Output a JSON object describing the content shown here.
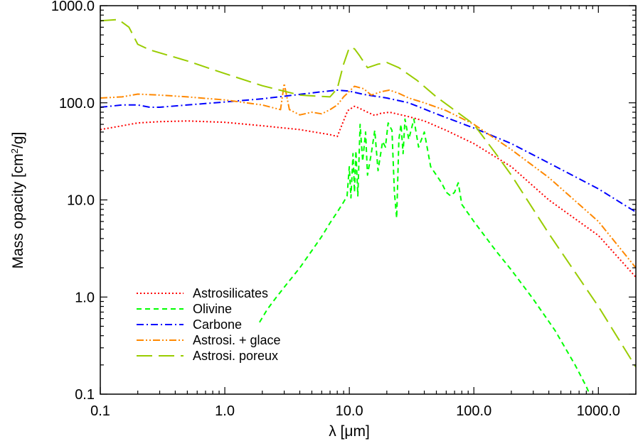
{
  "chart_data": {
    "type": "line",
    "xscale": "log",
    "yscale": "log",
    "xlim": [
      0.1,
      2000
    ],
    "ylim": [
      0.1,
      1000
    ],
    "xlabel": "λ [μm]",
    "ylabel_main": "Mass opacity [cm",
    "ylabel_sup": "2",
    "ylabel_end": "/g]",
    "x_ticks": [
      "0.1",
      "1.0",
      "10.0",
      "100.0",
      "1000.0"
    ],
    "y_ticks": [
      "0.1",
      "1.0",
      "10.0",
      "100.0",
      "1000.0"
    ],
    "legend_position": "bottom-left",
    "grid": false,
    "series": [
      {
        "name": "Astrosilicates",
        "color": "#ff0000",
        "dash": "dotted",
        "points": [
          [
            0.1,
            53
          ],
          [
            0.15,
            58
          ],
          [
            0.2,
            62
          ],
          [
            0.3,
            64
          ],
          [
            0.5,
            65
          ],
          [
            1,
            63
          ],
          [
            2,
            58
          ],
          [
            4,
            53
          ],
          [
            7,
            47
          ],
          [
            8,
            45
          ],
          [
            9.7,
            83
          ],
          [
            11,
            92
          ],
          [
            12,
            88
          ],
          [
            14,
            80
          ],
          [
            16,
            74
          ],
          [
            18,
            78
          ],
          [
            21,
            80
          ],
          [
            25,
            76
          ],
          [
            30,
            72
          ],
          [
            40,
            65
          ],
          [
            60,
            52
          ],
          [
            100,
            38
          ],
          [
            200,
            22
          ],
          [
            400,
            10
          ],
          [
            1000,
            4.3
          ],
          [
            2000,
            1.6
          ]
        ]
      },
      {
        "name": "Olivine",
        "color": "#00ff00",
        "dash": "dashed",
        "points": [
          [
            1.9,
            0.55
          ],
          [
            2.2,
            0.75
          ],
          [
            2.6,
            1.0
          ],
          [
            3.2,
            1.4
          ],
          [
            4,
            2.0
          ],
          [
            5,
            3.0
          ],
          [
            6,
            4.2
          ],
          [
            7,
            5.8
          ],
          [
            8,
            7.5
          ],
          [
            9,
            9.5
          ],
          [
            9.6,
            11
          ],
          [
            10,
            22
          ],
          [
            10.3,
            10.5
          ],
          [
            10.7,
            30
          ],
          [
            11,
            12
          ],
          [
            11.3,
            32
          ],
          [
            11.7,
            11
          ],
          [
            12.2,
            60
          ],
          [
            12.8,
            25
          ],
          [
            13.5,
            50
          ],
          [
            14,
            18
          ],
          [
            15,
            30
          ],
          [
            16,
            52
          ],
          [
            17,
            20
          ],
          [
            18.5,
            40
          ],
          [
            19.5,
            35
          ],
          [
            20.5,
            62
          ],
          [
            22,
            52
          ],
          [
            23,
            12
          ],
          [
            24,
            6.5
          ],
          [
            25,
            42
          ],
          [
            26,
            60
          ],
          [
            27,
            30
          ],
          [
            28,
            68
          ],
          [
            30,
            42
          ],
          [
            33,
            68
          ],
          [
            36,
            35
          ],
          [
            40,
            50
          ],
          [
            45,
            22
          ],
          [
            55,
            15
          ],
          [
            60,
            12
          ],
          [
            65,
            11
          ],
          [
            70,
            12
          ],
          [
            75,
            15
          ],
          [
            80,
            9
          ],
          [
            100,
            6
          ],
          [
            150,
            3
          ],
          [
            200,
            1.9
          ],
          [
            300,
            0.95
          ],
          [
            450,
            0.45
          ],
          [
            650,
            0.2
          ],
          [
            800,
            0.12
          ],
          [
            850,
            0.1
          ]
        ]
      },
      {
        "name": "Carbone",
        "color": "#0000ff",
        "dash": "dashdot",
        "points": [
          [
            0.1,
            90
          ],
          [
            0.15,
            95
          ],
          [
            0.2,
            95
          ],
          [
            0.25,
            90
          ],
          [
            0.3,
            90
          ],
          [
            0.5,
            95
          ],
          [
            1,
            102
          ],
          [
            2,
            110
          ],
          [
            4,
            122
          ],
          [
            6,
            130
          ],
          [
            8,
            135
          ],
          [
            10,
            132
          ],
          [
            13,
            122
          ],
          [
            20,
            112
          ],
          [
            30,
            100
          ],
          [
            50,
            77
          ],
          [
            100,
            55
          ],
          [
            200,
            38
          ],
          [
            400,
            24
          ],
          [
            1000,
            13
          ],
          [
            2000,
            7.5
          ]
        ]
      },
      {
        "name": "Astrosi. + glace",
        "color": "#ff8800",
        "dash": "dashdotdot",
        "points": [
          [
            0.1,
            112
          ],
          [
            0.15,
            115
          ],
          [
            0.2,
            123
          ],
          [
            0.3,
            120
          ],
          [
            0.5,
            115
          ],
          [
            1,
            107
          ],
          [
            2,
            95
          ],
          [
            2.8,
            85
          ],
          [
            3.0,
            158
          ],
          [
            3.3,
            85
          ],
          [
            4,
            75
          ],
          [
            5,
            80
          ],
          [
            6,
            77
          ],
          [
            7,
            85
          ],
          [
            8,
            95
          ],
          [
            9,
            115
          ],
          [
            11,
            148
          ],
          [
            13,
            140
          ],
          [
            15,
            120
          ],
          [
            18,
            130
          ],
          [
            21,
            135
          ],
          [
            25,
            125
          ],
          [
            30,
            112
          ],
          [
            40,
            100
          ],
          [
            60,
            83
          ],
          [
            100,
            60
          ],
          [
            200,
            33
          ],
          [
            400,
            17
          ],
          [
            1000,
            6
          ],
          [
            2000,
            2
          ]
        ]
      },
      {
        "name": "Astrosi. poreux",
        "color": "#99cc00",
        "dash": "longdash",
        "points": [
          [
            0.1,
            700
          ],
          [
            0.14,
            720
          ],
          [
            0.17,
            600
          ],
          [
            0.2,
            400
          ],
          [
            0.25,
            350
          ],
          [
            0.5,
            270
          ],
          [
            1,
            200
          ],
          [
            2,
            150
          ],
          [
            4,
            120
          ],
          [
            7,
            115
          ],
          [
            8,
            140
          ],
          [
            9,
            250
          ],
          [
            10,
            370
          ],
          [
            11,
            360
          ],
          [
            12,
            310
          ],
          [
            14,
            230
          ],
          [
            17,
            250
          ],
          [
            20,
            260
          ],
          [
            25,
            230
          ],
          [
            35,
            170
          ],
          [
            50,
            115
          ],
          [
            100,
            60
          ],
          [
            150,
            30
          ],
          [
            200,
            18
          ],
          [
            400,
            4.5
          ],
          [
            1000,
            0.8
          ],
          [
            2000,
            0.19
          ]
        ]
      }
    ]
  }
}
